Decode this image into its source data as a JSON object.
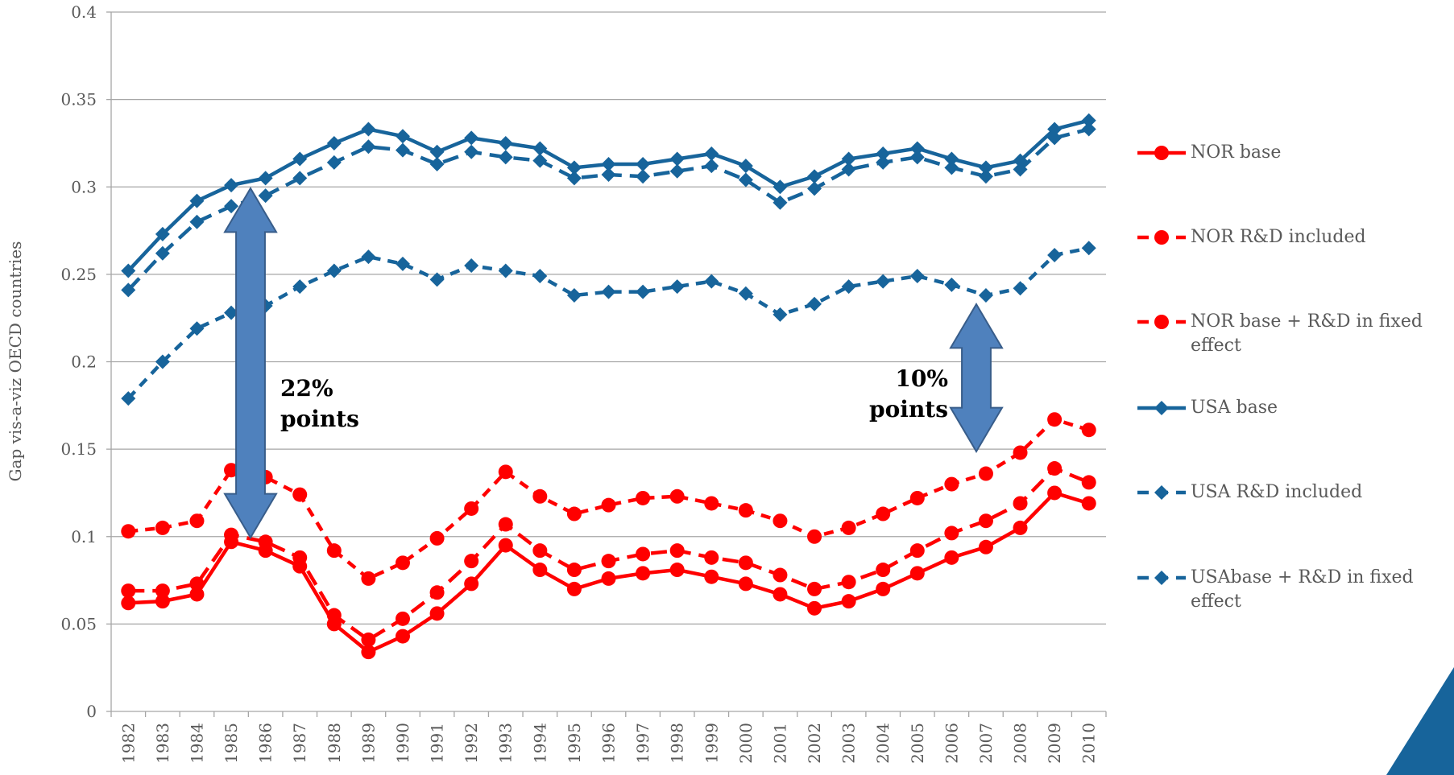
{
  "chart_data": {
    "type": "line",
    "y_label": "Gap vis-a-viz OECD countries",
    "categories": [
      "1982",
      "1983",
      "1984",
      "1985",
      "1986",
      "1987",
      "1988",
      "1989",
      "1990",
      "1991",
      "1992",
      "1993",
      "1994",
      "1995",
      "1996",
      "1997",
      "1998",
      "1999",
      "2000",
      "2001",
      "2002",
      "2003",
      "2004",
      "2005",
      "2006",
      "2007",
      "2008",
      "2009",
      "2010"
    ],
    "ylim": [
      0,
      0.4
    ],
    "yticks": [
      0,
      0.05,
      0.1,
      0.15,
      0.2,
      0.25,
      0.3,
      0.35,
      0.4
    ],
    "grid": true,
    "legend": "right",
    "series": [
      {
        "name": "NOR base",
        "color": "#ff0000",
        "dash": "solid",
        "marker": "circle",
        "values": [
          0.062,
          0.063,
          0.067,
          0.097,
          0.092,
          0.083,
          0.05,
          0.034,
          0.043,
          0.056,
          0.073,
          0.095,
          0.081,
          0.07,
          0.076,
          0.079,
          0.081,
          0.077,
          0.073,
          0.067,
          0.059,
          0.063,
          0.07,
          0.079,
          0.088,
          0.094,
          0.105,
          0.125,
          0.119
        ]
      },
      {
        "name": "NOR R&D included",
        "color": "#ff0000",
        "dash": "long",
        "marker": "circle",
        "values": [
          0.069,
          0.069,
          0.073,
          0.101,
          0.097,
          0.088,
          0.055,
          0.041,
          0.053,
          0.068,
          0.086,
          0.107,
          0.092,
          0.081,
          0.086,
          0.09,
          0.092,
          0.088,
          0.085,
          0.078,
          0.07,
          0.074,
          0.081,
          0.092,
          0.102,
          0.109,
          0.119,
          0.139,
          0.131
        ]
      },
      {
        "name": "NOR base + R&D in fixed effect",
        "color": "#ff0000",
        "dash": "short",
        "marker": "circle",
        "values": [
          0.103,
          0.105,
          0.109,
          0.138,
          0.134,
          0.124,
          0.092,
          0.076,
          0.085,
          0.099,
          0.116,
          0.137,
          0.123,
          0.113,
          0.118,
          0.122,
          0.123,
          0.119,
          0.115,
          0.109,
          0.1,
          0.105,
          0.113,
          0.122,
          0.13,
          0.136,
          0.148,
          0.167,
          0.161
        ]
      },
      {
        "name": "USA base",
        "color": "#17649b",
        "dash": "solid",
        "marker": "diamond",
        "values": [
          0.252,
          0.273,
          0.292,
          0.301,
          0.305,
          0.316,
          0.325,
          0.333,
          0.329,
          0.32,
          0.328,
          0.325,
          0.322,
          0.311,
          0.313,
          0.313,
          0.316,
          0.319,
          0.312,
          0.3,
          0.306,
          0.316,
          0.319,
          0.322,
          0.316,
          0.311,
          0.315,
          0.333,
          0.338
        ]
      },
      {
        "name": "USA R&D included",
        "color": "#17649b",
        "dash": "long",
        "marker": "diamond",
        "values": [
          0.241,
          0.262,
          0.28,
          0.289,
          0.295,
          0.305,
          0.314,
          0.323,
          0.321,
          0.313,
          0.32,
          0.317,
          0.315,
          0.305,
          0.307,
          0.306,
          0.309,
          0.312,
          0.304,
          0.291,
          0.299,
          0.31,
          0.314,
          0.317,
          0.311,
          0.306,
          0.31,
          0.328,
          0.333
        ]
      },
      {
        "name": "USAbase + R&D in fixed effect",
        "color": "#17649b",
        "dash": "short",
        "marker": "diamond",
        "values": [
          0.179,
          0.2,
          0.219,
          0.228,
          0.232,
          0.243,
          0.252,
          0.26,
          0.256,
          0.247,
          0.255,
          0.252,
          0.249,
          0.238,
          0.24,
          0.24,
          0.243,
          0.246,
          0.239,
          0.227,
          0.233,
          0.243,
          0.246,
          0.249,
          0.244,
          0.238,
          0.242,
          0.261,
          0.265
        ]
      }
    ],
    "annotations": [
      {
        "lines": [
          "22%",
          "points"
        ]
      },
      {
        "lines": [
          "10%",
          "points"
        ]
      }
    ]
  }
}
